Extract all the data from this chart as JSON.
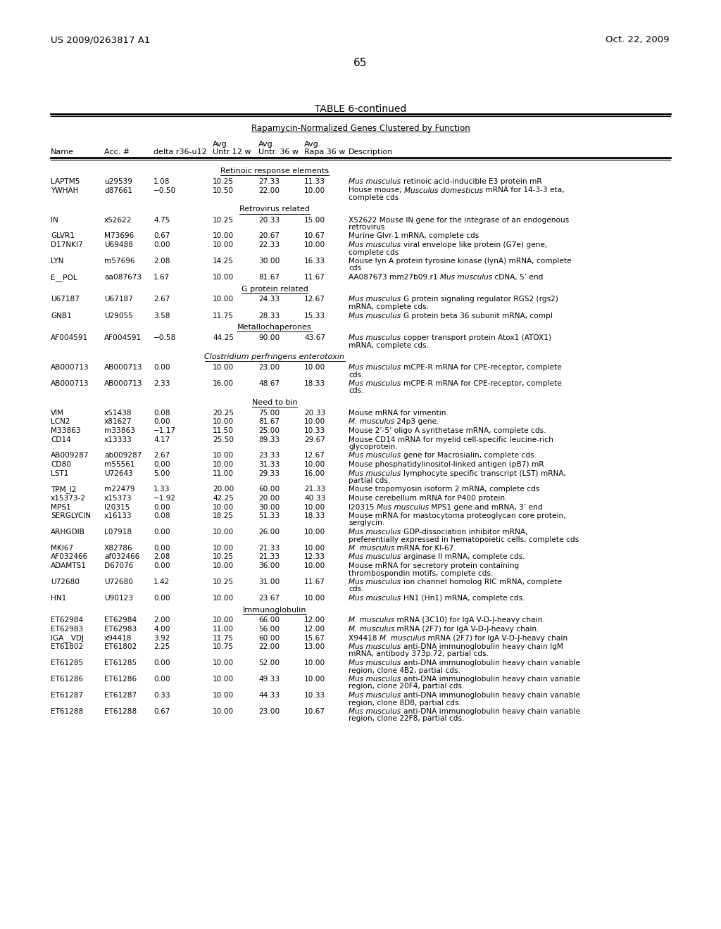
{
  "page_number": "65",
  "left_header": "US 2009/0263817 A1",
  "right_header": "Oct. 22, 2009",
  "table_title": "TABLE 6-continued",
  "subtitle": "Rapamycin-Normalized Genes Clustered by Function",
  "sections": [
    {
      "section_title": "Retinoic response elements",
      "section_italic": false,
      "rows": [
        [
          "LAPTM5",
          "u29539",
          "1.08",
          "10.25",
          "27.33",
          "11.33",
          [
            [
              "italic",
              "Mus musculus "
            ],
            [
              "normal",
              "retinoic acid-inducible E3 protein mR"
            ]
          ]
        ],
        [
          "YWHAH",
          "d87661",
          "−0.50",
          "10.50",
          "22.00",
          "10.00",
          [
            [
              "normal",
              "House mouse; "
            ],
            [
              "italic",
              "Musculus domesticus"
            ],
            [
              "normal",
              " mRNA for 14-3-3 eta,\ncomplete cds"
            ]
          ]
        ]
      ]
    },
    {
      "section_title": "Retrovirus related",
      "section_italic": false,
      "rows": [
        [
          "IN",
          "x52622",
          "4.75",
          "10.25",
          "20.33",
          "15.00",
          [
            [
              "normal",
              "X52622 Mouse IN gene for the integrase of an endogenous\nretrovirus"
            ]
          ]
        ],
        [
          "GLVR1",
          "M73696",
          "0.67",
          "10.00",
          "20.67",
          "10.67",
          [
            [
              "normal",
              "Murine Glvr-1 mRNA, complete cds"
            ]
          ]
        ],
        [
          "D17NKI7",
          "U69488",
          "0.00",
          "10.00",
          "22.33",
          "10.00",
          [
            [
              "italic",
              "Mus musculus "
            ],
            [
              "normal",
              "viral envelope like protein (G7e) gene,\ncomplete cds"
            ]
          ]
        ],
        [
          "LYN",
          "m57696",
          "2.08",
          "14.25",
          "30.00",
          "16.33",
          [
            [
              "normal",
              "Mouse lyn A protein tyrosine kinase (lynA) mRNA, complete\ncds"
            ]
          ]
        ],
        [
          "E__POL",
          "aa087673",
          "1.67",
          "10.00",
          "81.67",
          "11.67",
          [
            [
              "normal",
              "AA087673 mm27b09.r1 "
            ],
            [
              "italic",
              "Mus musculus"
            ],
            [
              "normal",
              " cDNA, 5’ end"
            ]
          ]
        ]
      ]
    },
    {
      "section_title": "G protein related",
      "section_italic": false,
      "rows": [
        [
          "U67187",
          "U67187",
          "2.67",
          "10.00",
          "24.33",
          "12.67",
          [
            [
              "italic",
              "Mus musculus "
            ],
            [
              "normal",
              "G protein signaling regulator RGS2 (rgs2)\nmRNA, complete cds."
            ]
          ]
        ],
        [
          "GNB1",
          "U29055",
          "3.58",
          "11.75",
          "28.33",
          "15.33",
          [
            [
              "italic",
              "Mus musculus "
            ],
            [
              "normal",
              "G protein beta 36 subunit mRNA, compl"
            ]
          ]
        ]
      ]
    },
    {
      "section_title": "Metallochaperones",
      "section_italic": false,
      "rows": [
        [
          "AF004591",
          "AF004591",
          "−0.58",
          "44.25",
          "90.00",
          "43.67",
          [
            [
              "italic",
              "Mus musculus "
            ],
            [
              "normal",
              "copper transport protein Atox1 (ATOX1)\nmRNA, complete cds."
            ]
          ]
        ]
      ]
    },
    {
      "section_title": "Clostridium perfringens enterotoxin",
      "section_italic": true,
      "rows": [
        [
          "AB000713",
          "AB000713",
          "0.00",
          "10.00",
          "23.00",
          "10.00",
          [
            [
              "italic",
              "Mus musculus "
            ],
            [
              "normal",
              "mCPE-R mRNA for CPE-receptor, complete\ncds."
            ]
          ]
        ],
        [
          "AB000713",
          "AB000713",
          "2.33",
          "16.00",
          "48.67",
          "18.33",
          [
            [
              "italic",
              "Mus musculus "
            ],
            [
              "normal",
              "mCPE-R mRNA for CPE-receptor, complete\ncds."
            ]
          ]
        ]
      ]
    },
    {
      "section_title": "Need to bin",
      "section_italic": false,
      "rows": [
        [
          "VIM",
          "x51438",
          "0.08",
          "20.25",
          "75.00",
          "20.33",
          [
            [
              "normal",
              "Mouse mRNA for vimentin."
            ]
          ]
        ],
        [
          "LCN2",
          "x81627",
          "0.00",
          "10.00",
          "81.67",
          "10.00",
          [
            [
              "italic",
              "M. musculus"
            ],
            [
              "normal",
              " 24p3 gene."
            ]
          ]
        ],
        [
          "M33863",
          "m33863",
          "−1.17",
          "11.50",
          "25.00",
          "10.33",
          [
            [
              "normal",
              "Mouse 2’-5’ oligo A synthetase mRNA, complete cds."
            ]
          ]
        ],
        [
          "CD14",
          "x13333",
          "4.17",
          "25.50",
          "89.33",
          "29.67",
          [
            [
              "normal",
              "Mouse CD14 mRNA for myelid cell-specific leucine-rich\nglycoprotein."
            ]
          ]
        ],
        [
          "AB009287",
          "ab009287",
          "2.67",
          "10.00",
          "23.33",
          "12.67",
          [
            [
              "italic",
              "Mus musculus "
            ],
            [
              "normal",
              "gene for Macrosialin, complete cds."
            ]
          ]
        ],
        [
          "CD80",
          "m55561",
          "0.00",
          "10.00",
          "31.33",
          "10.00",
          [
            [
              "normal",
              "Mouse phosphatidylinositol-linked antigen (pB7) mR"
            ]
          ]
        ],
        [
          "LST1",
          "U72643",
          "5.00",
          "11.00",
          "29.33",
          "16.00",
          [
            [
              "italic",
              "Mus musculus "
            ],
            [
              "normal",
              "lymphocyte specific transcript (LST) mRNA,\npartial cds."
            ]
          ]
        ],
        [
          "TPM_I2",
          "m22479",
          "1.33",
          "20.00",
          "60.00",
          "21.33",
          [
            [
              "normal",
              "Mouse tropomyosin isoform 2 mRNA, complete cds"
            ]
          ]
        ],
        [
          "x15373-2",
          "x15373",
          "−1.92",
          "42.25",
          "20.00",
          "40.33",
          [
            [
              "normal",
              "Mouse cerebellum mRNA for P400 protein."
            ]
          ]
        ],
        [
          "MPS1",
          "I20315",
          "0.00",
          "10.00",
          "30.00",
          "10.00",
          [
            [
              "normal",
              "I20315 "
            ],
            [
              "italic",
              "Mus musculus"
            ],
            [
              "normal",
              " MPS1 gene and mRNA, 3’ end"
            ]
          ]
        ],
        [
          "SERGLYCIN",
          "x16133",
          "0.08",
          "18.25",
          "51.33",
          "18.33",
          [
            [
              "normal",
              "Mouse mRNA for mastocytoma proteoglycan core protein,\nserglycin."
            ]
          ]
        ],
        [
          "ARHGDIB",
          "L07918",
          "0.00",
          "10.00",
          "26.00",
          "10.00",
          [
            [
              "italic",
              "Mus musculus "
            ],
            [
              "normal",
              "GDP-dissociation inhibitor mRNA,\npreferentially expressed in hematopoietic cells, complete cds"
            ]
          ]
        ],
        [
          "MKI67",
          "X82786",
          "0.00",
          "10.00",
          "21.33",
          "10.00",
          [
            [
              "italic",
              "M. musculus"
            ],
            [
              "normal",
              " mRNA for KI-67."
            ]
          ]
        ],
        [
          "AF032466",
          "af032466",
          "2.08",
          "10.25",
          "21.33",
          "12.33",
          [
            [
              "italic",
              "Mus musculus "
            ],
            [
              "normal",
              "arginase II mRNA, complete cds."
            ]
          ]
        ],
        [
          "ADAMTS1",
          "D67076",
          "0.00",
          "10.00",
          "36.00",
          "10.00",
          [
            [
              "normal",
              "Mouse mRNA for secretory protein containing\nthrombospondin motifs, complete cds."
            ]
          ]
        ],
        [
          "U72680",
          "U72680",
          "1.42",
          "10.25",
          "31.00",
          "11.67",
          [
            [
              "italic",
              "Mus musculus "
            ],
            [
              "normal",
              "ion channel homolog RIC mRNA, complete\ncds."
            ]
          ]
        ],
        [
          "HN1",
          "U90123",
          "0.00",
          "10.00",
          "23.67",
          "10.00",
          [
            [
              "italic",
              "Mus musculus "
            ],
            [
              "normal",
              "HN1 (Hn1) mRNA, complete cds."
            ]
          ]
        ]
      ]
    },
    {
      "section_title": "Immunoglobulin",
      "section_italic": false,
      "rows": [
        [
          "ET62984",
          "ET62984",
          "2.00",
          "10.00",
          "66.00",
          "12.00",
          [
            [
              "italic",
              "M. musculus"
            ],
            [
              "normal",
              " mRNA (3C10) for IgA V-D-J-heavy chain."
            ]
          ]
        ],
        [
          "ET62983",
          "ET62983",
          "4.00",
          "11.00",
          "56.00",
          "12.00",
          [
            [
              "italic",
              "M. musculus"
            ],
            [
              "normal",
              " mRNA (2F7) for IgA V-D-J-heavy chain."
            ]
          ]
        ],
        [
          "IGA__VDJ",
          "x94418",
          "3.92",
          "11.75",
          "60.00",
          "15.67",
          [
            [
              "normal",
              "X94418 "
            ],
            [
              "italic",
              "M. musculus"
            ],
            [
              "normal",
              " mRNA (2F7) for IgA V-D-J-heavy chain"
            ]
          ]
        ],
        [
          "ET61802",
          "ET61802",
          "2.25",
          "10.75",
          "22.00",
          "13.00",
          [
            [
              "italic",
              "Mus musculus "
            ],
            [
              "normal",
              "anti-DNA immunoglobulin heavy chain IgM\nmRNA, antibody 373p.72, partial cds."
            ]
          ]
        ],
        [
          "ET61285",
          "ET61285",
          "0.00",
          "10.00",
          "52.00",
          "10.00",
          [
            [
              "italic",
              "Mus musculus "
            ],
            [
              "normal",
              "anti-DNA immunoglobulin heavy chain variable\nregion, clone 4B2, partial cds."
            ]
          ]
        ],
        [
          "ET61286",
          "ET61286",
          "0.00",
          "10.00",
          "49.33",
          "10.00",
          [
            [
              "italic",
              "Mus musculus "
            ],
            [
              "normal",
              "anti-DNA immunoglobulin heavy chain variable\nregion, clone 20F4, partial cds."
            ]
          ]
        ],
        [
          "ET61287",
          "ET61287",
          "0.33",
          "10.00",
          "44.33",
          "10.33",
          [
            [
              "italic",
              "Mus musculus "
            ],
            [
              "normal",
              "anti-DNA immunoglobulin heavy chain variable\nregion, clone 8D8, partial cds."
            ]
          ]
        ],
        [
          "ET61288",
          "ET61288",
          "0.67",
          "10.00",
          "23.00",
          "10.67",
          [
            [
              "italic",
              "Mus musculus "
            ],
            [
              "normal",
              "anti-DNA immunoglobulin heavy chain variable\nregion, clone 22F8, partial cds."
            ]
          ]
        ]
      ]
    }
  ]
}
